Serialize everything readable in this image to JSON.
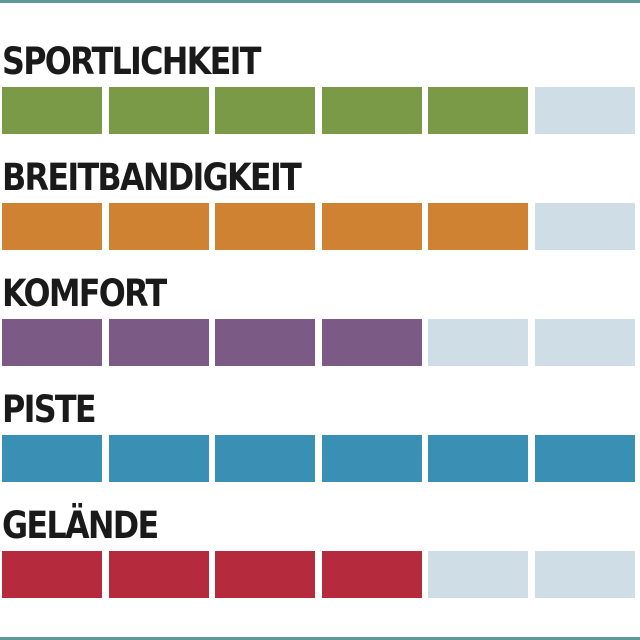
{
  "chart_data": {
    "type": "bar",
    "max": 6,
    "empty_color": "#cfdde7",
    "categories": [
      "SPORTLICHKEIT",
      "BREITBANDIGKEIT",
      "KOMFORT",
      "PISTE",
      "GELÄNDE"
    ],
    "values": [
      5,
      5,
      4,
      6,
      4
    ],
    "colors": [
      "#7b9a48",
      "#cf8232",
      "#7b5a86",
      "#3a8fb5",
      "#b52a3c"
    ]
  }
}
